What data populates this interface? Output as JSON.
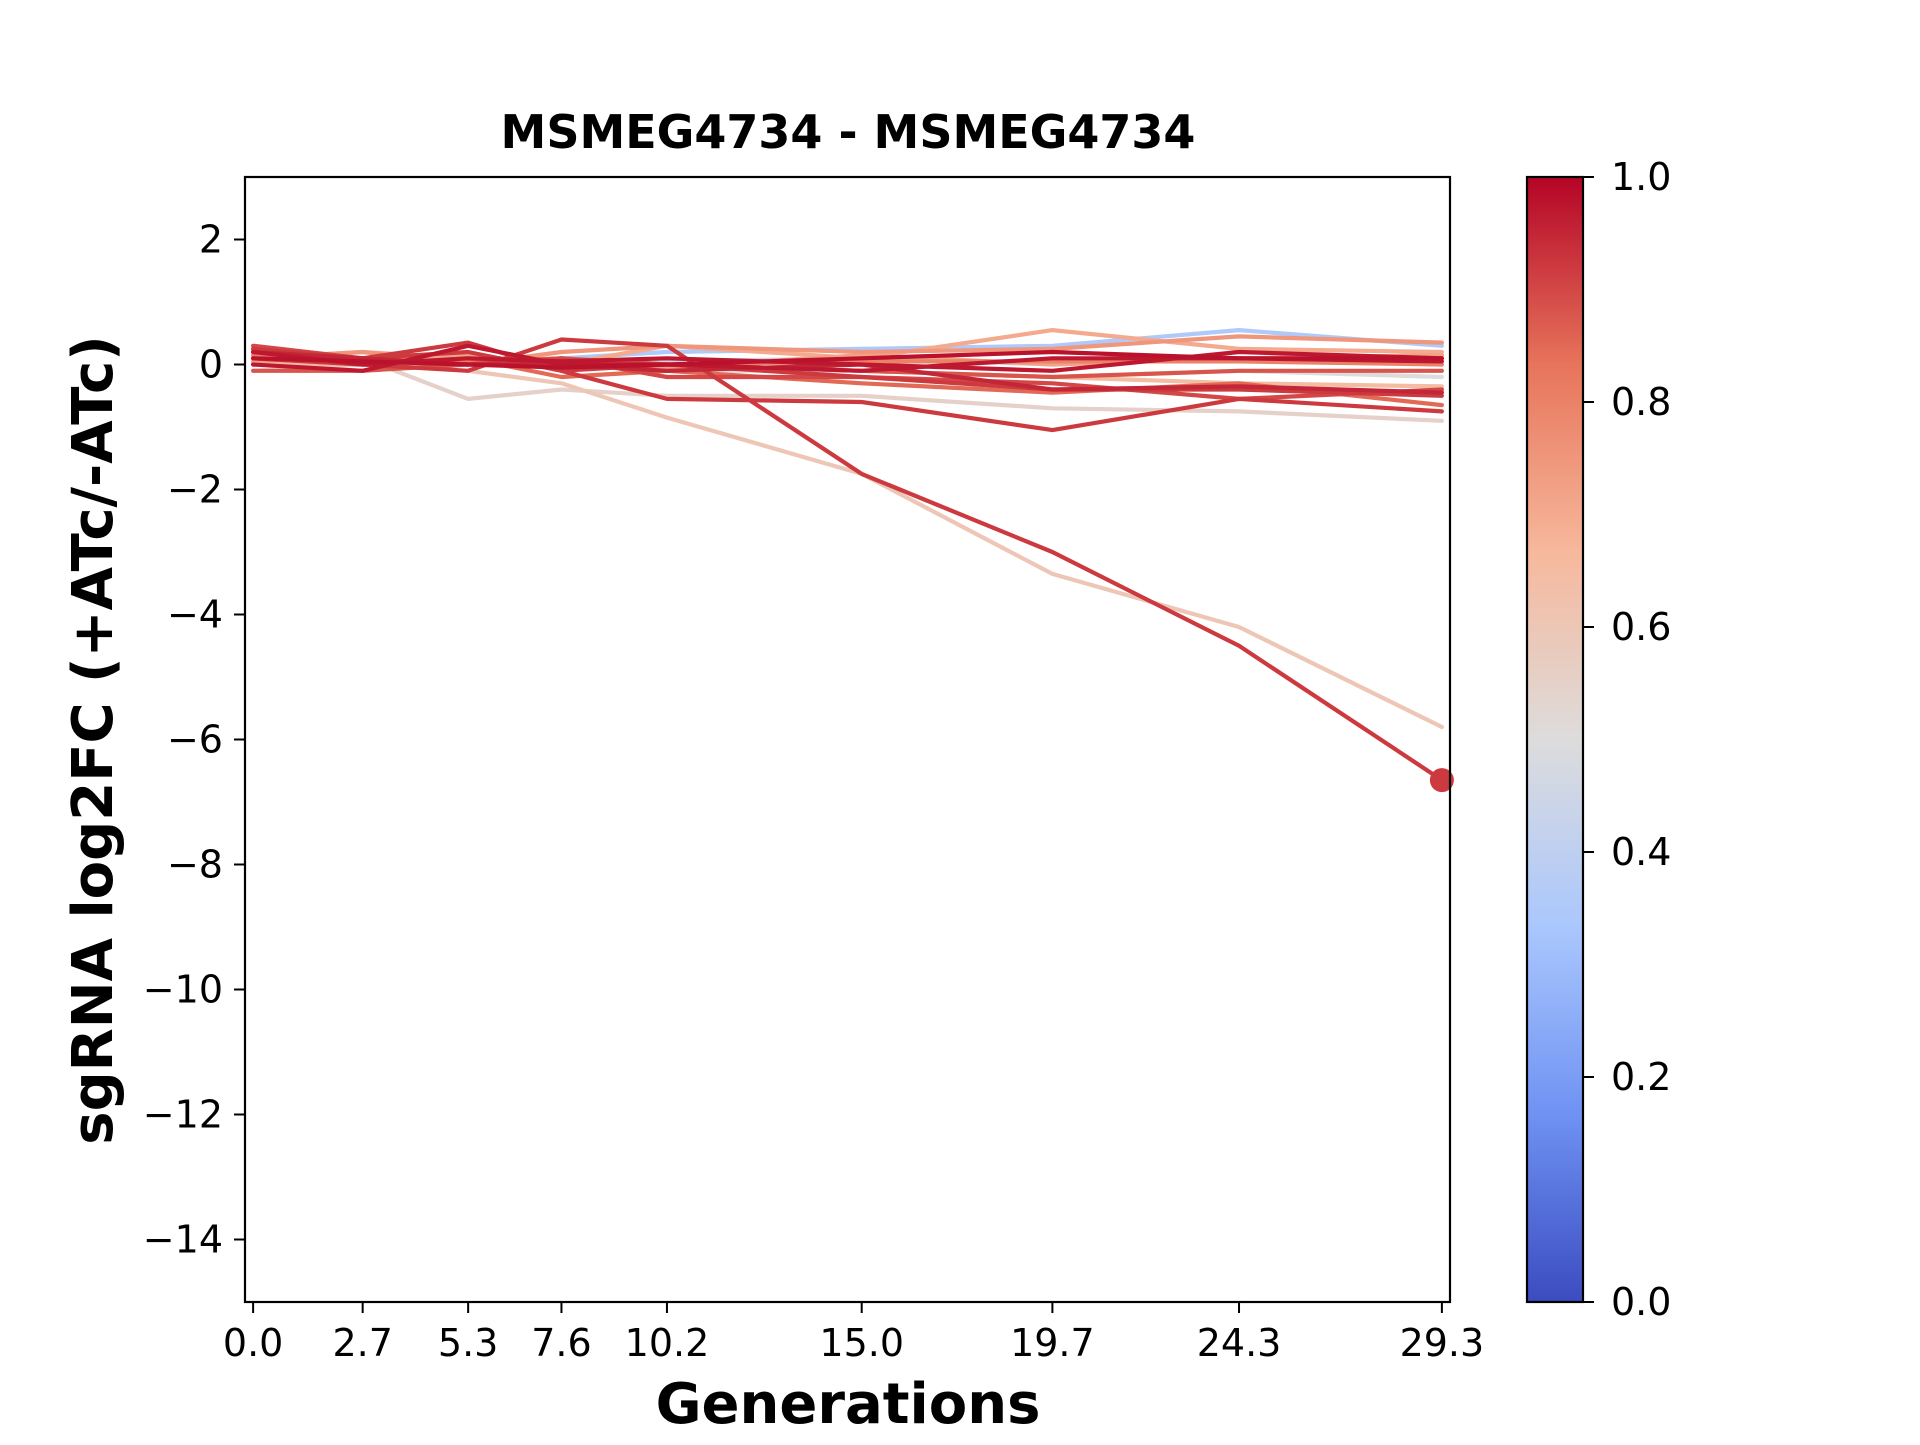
{
  "chart_data": {
    "type": "line",
    "title": "MSMEG4734 - MSMEG4734",
    "xlabel": "Generations",
    "ylabel": "sgRNA log2FC (+ATc/-ATc)",
    "x": [
      0.0,
      2.7,
      5.3,
      7.6,
      10.2,
      15.0,
      19.7,
      24.3,
      29.3
    ],
    "x_tick_labels": [
      "0.0",
      "2.7",
      "5.3",
      "7.6",
      "10.2",
      "15.0",
      "19.7",
      "24.3",
      "29.3"
    ],
    "xlim": [
      -0.2,
      29.5
    ],
    "ylim": [
      -15,
      3
    ],
    "y_ticks": [
      2,
      0,
      -2,
      -4,
      -6,
      -8,
      -10,
      -12,
      -14
    ],
    "y_tick_labels": [
      "2",
      "0",
      "−2",
      "−4",
      "−6",
      "−8",
      "−10",
      "−12",
      "−14"
    ],
    "grid": false,
    "colorbar": {
      "colormap": "coolwarm",
      "range": [
        0.0,
        1.0
      ],
      "tick_labels": [
        "0.0",
        "0.2",
        "0.4",
        "0.6",
        "0.8",
        "1.0"
      ],
      "colors": [
        "#3b4cc0",
        "#6f92f3",
        "#aac7fd",
        "#dddcdc",
        "#f7b89c",
        "#e7745b",
        "#b40426"
      ]
    },
    "series": [
      {
        "color_value": 0.92,
        "values": [
          0.1,
          0.0,
          -0.1,
          0.4,
          0.3,
          -1.75,
          -3.0,
          -4.5,
          -6.65
        ],
        "endpoint_marker": true
      },
      {
        "color_value": 0.6,
        "values": [
          0.0,
          0.0,
          -0.1,
          -0.3,
          -0.85,
          -1.75,
          -3.35,
          -4.2,
          -5.8
        ]
      },
      {
        "color_value": 0.92,
        "values": [
          0.2,
          0.1,
          0.35,
          -0.1,
          -0.55,
          -0.6,
          -1.05,
          -0.55,
          -0.75
        ]
      },
      {
        "color_value": 0.55,
        "values": [
          0.0,
          0.1,
          -0.55,
          -0.4,
          -0.5,
          -0.5,
          -0.7,
          -0.75,
          -0.9
        ]
      },
      {
        "color_value": 0.7,
        "values": [
          0.1,
          0.2,
          0.1,
          0.0,
          0.3,
          0.1,
          0.55,
          0.25,
          0.2
        ]
      },
      {
        "color_value": 0.35,
        "values": [
          0.0,
          0.0,
          0.0,
          0.1,
          0.2,
          0.25,
          0.3,
          0.55,
          0.3
        ]
      },
      {
        "color_value": 0.75,
        "values": [
          0.1,
          0.2,
          0.0,
          0.2,
          0.3,
          0.2,
          0.25,
          0.45,
          0.35
        ]
      },
      {
        "color_value": 0.97,
        "values": [
          0.2,
          0.0,
          0.1,
          0.05,
          0.1,
          0.0,
          -0.1,
          0.2,
          0.1
        ]
      },
      {
        "color_value": 0.97,
        "values": [
          0.0,
          -0.1,
          0.3,
          0.0,
          0.0,
          -0.1,
          0.1,
          0.1,
          0.05
        ]
      },
      {
        "color_value": 0.92,
        "values": [
          0.25,
          0.1,
          0.2,
          -0.1,
          0.0,
          -0.2,
          -0.4,
          -0.4,
          -0.5
        ]
      },
      {
        "color_value": 0.9,
        "values": [
          0.3,
          0.1,
          0.0,
          0.1,
          -0.2,
          -0.2,
          -0.3,
          -0.55,
          -0.4
        ]
      },
      {
        "color_value": 0.85,
        "values": [
          0.1,
          0.0,
          0.1,
          -0.2,
          -0.1,
          -0.3,
          -0.45,
          -0.3,
          -0.65
        ]
      },
      {
        "color_value": 0.65,
        "values": [
          0.0,
          0.0,
          0.1,
          0.0,
          0.0,
          -0.1,
          -0.2,
          -0.3,
          -0.35
        ]
      },
      {
        "color_value": 0.5,
        "values": [
          -0.1,
          0.0,
          0.0,
          0.1,
          -0.1,
          -0.1,
          -0.2,
          -0.1,
          -0.2
        ]
      },
      {
        "color_value": 0.8,
        "values": [
          0.15,
          0.0,
          0.05,
          0.1,
          0.0,
          0.05,
          0.05,
          0.05,
          0.0
        ]
      },
      {
        "color_value": 0.88,
        "values": [
          -0.1,
          -0.1,
          0.0,
          0.1,
          0.0,
          -0.1,
          -0.2,
          -0.1,
          -0.1
        ]
      },
      {
        "color_value": 0.45,
        "values": [
          0.0,
          0.05,
          0.1,
          0.0,
          0.05,
          0.1,
          0.0,
          0.1,
          0.0
        ]
      },
      {
        "color_value": 0.95,
        "values": [
          0.2,
          0.1,
          0.0,
          0.0,
          -0.1,
          0.0,
          -0.4,
          -0.35,
          -0.45
        ]
      },
      {
        "color_value": 0.72,
        "values": [
          0.05,
          0.1,
          0.15,
          0.0,
          -0.05,
          0.15,
          0.0,
          0.1,
          0.15
        ]
      },
      {
        "color_value": 0.98,
        "values": [
          0.1,
          0.05,
          0.0,
          -0.05,
          0.0,
          0.1,
          0.2,
          0.1,
          0.1
        ]
      }
    ]
  }
}
